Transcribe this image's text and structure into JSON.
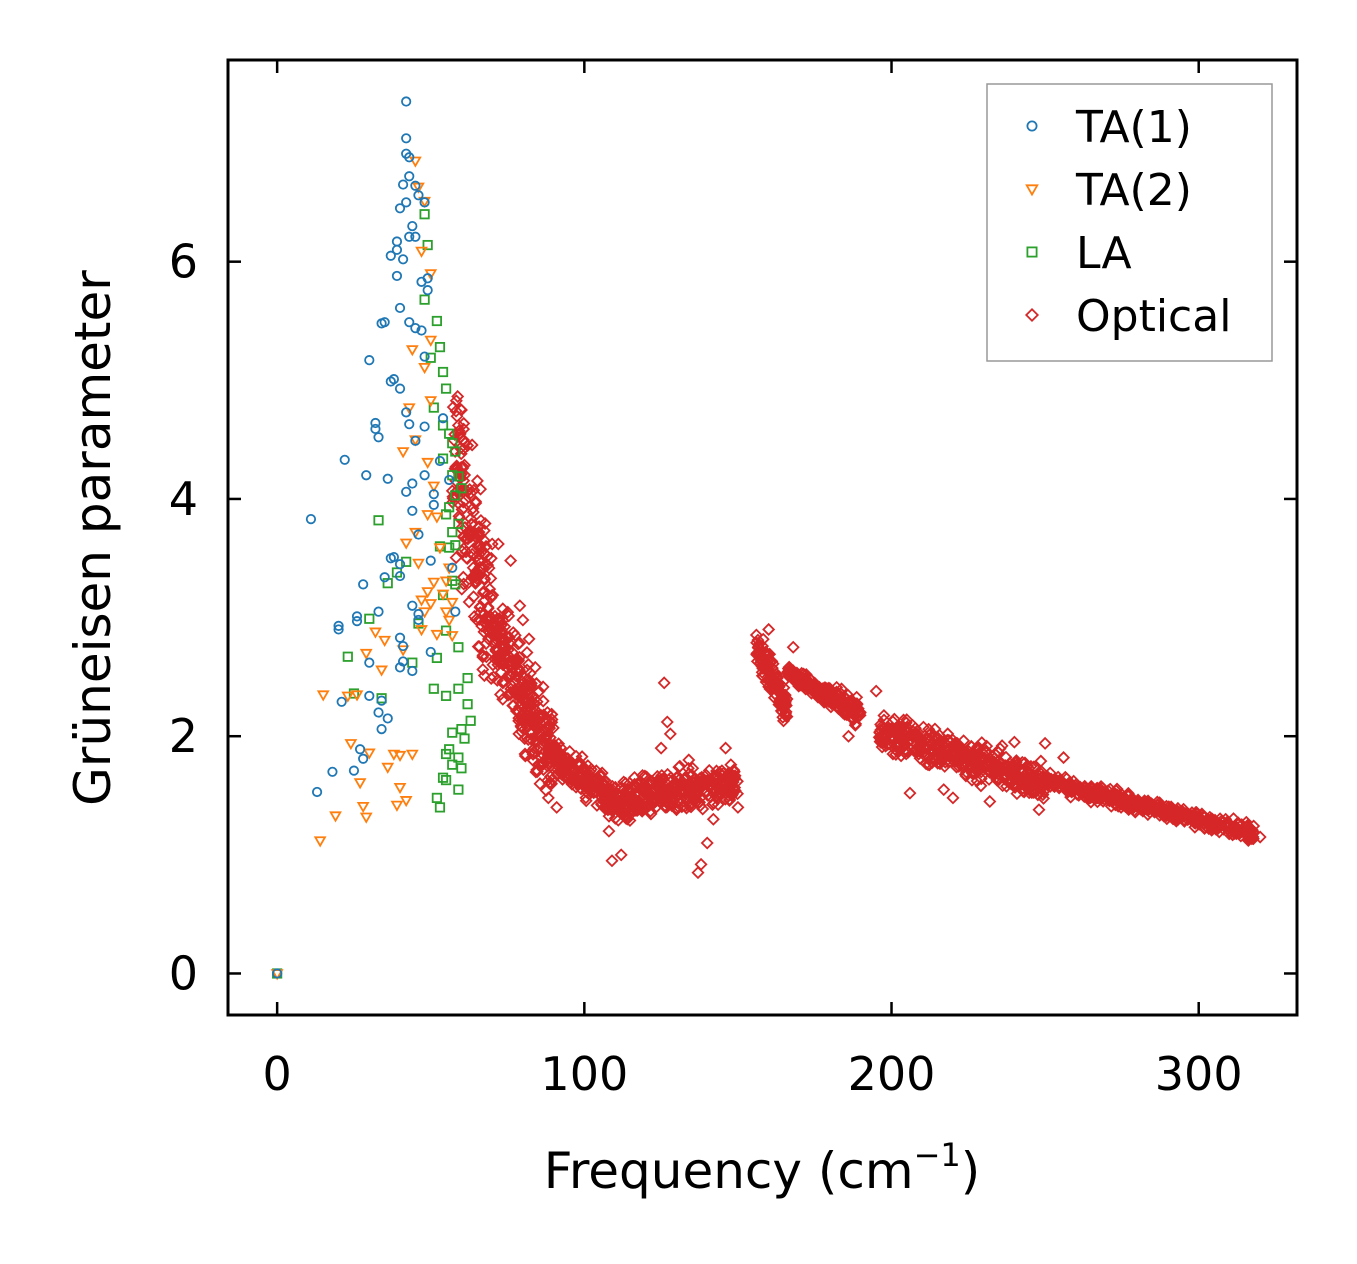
{
  "chart_data": {
    "type": "scatter",
    "title": "",
    "xlabel": "Frequency (cm",
    "xlabel_sup": "−1",
    "xlabel_close": ")",
    "ylabel": "Grüneisen parameter",
    "xlim": [
      -16,
      332
    ],
    "ylim": [
      -0.35,
      7.7
    ],
    "xticks": [
      0,
      100,
      200,
      300
    ],
    "yticks": [
      0,
      2,
      4,
      6
    ],
    "xtick_labels": [
      "0",
      "100",
      "200",
      "300"
    ],
    "ytick_labels": [
      "0",
      "2",
      "4",
      "6"
    ],
    "grid": false,
    "legend_position": "top-right",
    "series": [
      {
        "name": "TA(1)",
        "marker": "circle",
        "color": "#1f77b4",
        "points": [
          [
            0,
            0
          ],
          [
            11,
            3.83
          ],
          [
            13,
            1.53
          ],
          [
            18,
            1.7
          ],
          [
            20,
            2.9
          ],
          [
            20,
            2.93
          ],
          [
            21,
            2.29
          ],
          [
            22,
            4.33
          ],
          [
            25,
            1.71
          ],
          [
            26,
            2.97
          ],
          [
            26,
            3.01
          ],
          [
            27,
            1.89
          ],
          [
            28,
            1.81
          ],
          [
            28,
            3.28
          ],
          [
            29,
            4.2
          ],
          [
            30,
            2.34
          ],
          [
            30,
            2.62
          ],
          [
            30,
            5.17
          ],
          [
            32,
            4.64
          ],
          [
            32,
            4.59
          ],
          [
            33,
            2.2
          ],
          [
            33,
            3.05
          ],
          [
            33,
            4.52
          ],
          [
            34,
            2.3
          ],
          [
            34,
            2.06
          ],
          [
            34,
            5.48
          ],
          [
            35,
            5.49
          ],
          [
            35,
            3.34
          ],
          [
            36,
            4.17
          ],
          [
            36,
            2.15
          ],
          [
            37,
            3.5
          ],
          [
            37,
            4.99
          ],
          [
            37,
            6.05
          ],
          [
            38,
            5.01
          ],
          [
            38,
            3.51
          ],
          [
            39,
            5.88
          ],
          [
            39,
            6.1
          ],
          [
            39,
            6.17
          ],
          [
            40,
            3.45
          ],
          [
            40,
            3.35
          ],
          [
            40,
            4.93
          ],
          [
            40,
            5.61
          ],
          [
            40,
            6.45
          ],
          [
            40,
            2.83
          ],
          [
            40,
            2.58
          ],
          [
            41,
            2.76
          ],
          [
            41,
            2.63
          ],
          [
            41,
            6.65
          ],
          [
            41,
            6.02
          ],
          [
            42,
            4.06
          ],
          [
            42,
            4.73
          ],
          [
            42,
            6.5
          ],
          [
            42,
            6.91
          ],
          [
            42,
            7.04
          ],
          [
            42,
            7.35
          ],
          [
            43,
            5.49
          ],
          [
            43,
            4.63
          ],
          [
            43,
            6.21
          ],
          [
            43,
            6.72
          ],
          [
            43,
            6.88
          ],
          [
            44,
            3.9
          ],
          [
            44,
            4.13
          ],
          [
            44,
            3.1
          ],
          [
            44,
            2.55
          ],
          [
            44,
            6.3
          ],
          [
            45,
            6.64
          ],
          [
            45,
            6.21
          ],
          [
            45,
            5.44
          ],
          [
            45,
            4.49
          ],
          [
            46,
            3.7
          ],
          [
            46,
            3.03
          ],
          [
            46,
            2.98
          ],
          [
            46,
            6.56
          ],
          [
            47,
            5.83
          ],
          [
            47,
            5.42
          ],
          [
            48,
            5.2
          ],
          [
            48,
            4.61
          ],
          [
            48,
            4.2
          ],
          [
            48,
            6.5
          ],
          [
            49,
            5.76
          ],
          [
            49,
            5.86
          ],
          [
            50,
            3.48
          ],
          [
            50,
            2.71
          ],
          [
            51,
            4.04
          ],
          [
            51,
            3.95
          ],
          [
            53,
            4.32
          ],
          [
            54,
            4.68
          ],
          [
            56,
            4.16
          ],
          [
            57,
            3.42
          ],
          [
            58,
            3.05
          ]
        ]
      },
      {
        "name": "TA(2)",
        "marker": "triangle-down",
        "color": "#ff7f0e",
        "points": [
          [
            0,
            0
          ],
          [
            14,
            1.12
          ],
          [
            15,
            2.35
          ],
          [
            19,
            1.33
          ],
          [
            23,
            2.34
          ],
          [
            24,
            1.94
          ],
          [
            26,
            2.35
          ],
          [
            27,
            1.61
          ],
          [
            28,
            1.41
          ],
          [
            29,
            1.32
          ],
          [
            29,
            2.7
          ],
          [
            30,
            1.86
          ],
          [
            32,
            2.88
          ],
          [
            34,
            2.56
          ],
          [
            35,
            2.81
          ],
          [
            36,
            1.74
          ],
          [
            38,
            1.85
          ],
          [
            39,
            1.42
          ],
          [
            40,
            1.84
          ],
          [
            40,
            1.57
          ],
          [
            41,
            2.73
          ],
          [
            41,
            4.4
          ],
          [
            42,
            1.46
          ],
          [
            42,
            3.63
          ],
          [
            43,
            4.77
          ],
          [
            44,
            5.26
          ],
          [
            44,
            1.85
          ],
          [
            45,
            4.5
          ],
          [
            45,
            3.72
          ],
          [
            45,
            6.85
          ],
          [
            46,
            6.63
          ],
          [
            46,
            3.46
          ],
          [
            47,
            3.15
          ],
          [
            47,
            2.9
          ],
          [
            47,
            6.09
          ],
          [
            48,
            6.51
          ],
          [
            48,
            5.11
          ],
          [
            48,
            3.05
          ],
          [
            49,
            4.31
          ],
          [
            49,
            3.87
          ],
          [
            49,
            3.22
          ],
          [
            50,
            5.9
          ],
          [
            50,
            5.34
          ],
          [
            50,
            4.83
          ],
          [
            50,
            3.12
          ],
          [
            51,
            4.11
          ],
          [
            51,
            3.3
          ],
          [
            52,
            3.85
          ],
          [
            52,
            2.86
          ],
          [
            53,
            3.59
          ],
          [
            54,
            3.2
          ],
          [
            55,
            3.31
          ],
          [
            55,
            3.05
          ],
          [
            56,
            3.42
          ],
          [
            56,
            2.98
          ],
          [
            57,
            3.13
          ],
          [
            57,
            2.85
          ]
        ]
      },
      {
        "name": "LA",
        "marker": "square",
        "color": "#2ca02c",
        "points": [
          [
            0,
            0
          ],
          [
            23,
            2.67
          ],
          [
            25,
            2.36
          ],
          [
            30,
            2.99
          ],
          [
            33,
            3.82
          ],
          [
            34,
            2.32
          ],
          [
            36,
            3.29
          ],
          [
            39,
            3.38
          ],
          [
            42,
            3.47
          ],
          [
            44,
            2.62
          ],
          [
            46,
            2.95
          ],
          [
            48,
            6.4
          ],
          [
            48,
            5.68
          ],
          [
            49,
            6.14
          ],
          [
            50,
            5.19
          ],
          [
            51,
            4.77
          ],
          [
            51,
            2.4
          ],
          [
            52,
            5.5
          ],
          [
            52,
            2.66
          ],
          [
            52,
            1.48
          ],
          [
            53,
            5.28
          ],
          [
            53,
            3.6
          ],
          [
            53,
            1.4
          ],
          [
            54,
            5.07
          ],
          [
            54,
            4.62
          ],
          [
            54,
            4.34
          ],
          [
            54,
            3.19
          ],
          [
            54,
            1.65
          ],
          [
            55,
            4.93
          ],
          [
            55,
            3.87
          ],
          [
            55,
            2.89
          ],
          [
            55,
            2.34
          ],
          [
            55,
            1.85
          ],
          [
            55,
            1.63
          ],
          [
            56,
            4.55
          ],
          [
            56,
            3.93
          ],
          [
            56,
            3.59
          ],
          [
            56,
            1.89
          ],
          [
            57,
            4.47
          ],
          [
            57,
            4.2
          ],
          [
            57,
            3.72
          ],
          [
            57,
            3.31
          ],
          [
            57,
            2.03
          ],
          [
            57,
            1.76
          ],
          [
            58,
            4.4
          ],
          [
            58,
            4.03
          ],
          [
            58,
            3.61
          ],
          [
            58,
            3.28
          ],
          [
            59,
            4.19
          ],
          [
            59,
            3.79
          ],
          [
            59,
            2.75
          ],
          [
            59,
            2.4
          ],
          [
            59,
            1.82
          ],
          [
            59,
            1.55
          ],
          [
            60,
            4.09
          ],
          [
            60,
            2.06
          ],
          [
            60,
            1.73
          ],
          [
            61,
            1.98
          ],
          [
            62,
            2.49
          ],
          [
            62,
            2.27
          ],
          [
            63,
            2.13
          ]
        ]
      },
      {
        "name": "Optical",
        "marker": "diamond",
        "color": "#d62728",
        "bands": [
          {
            "x_start": 57,
            "x_end": 70,
            "y_center_start": 4.4,
            "y_center_end": 2.9,
            "half_width": 1.0,
            "n": 180
          },
          {
            "x_start": 70,
            "x_end": 90,
            "y_center_start": 2.9,
            "y_center_end": 1.8,
            "half_width": 0.55,
            "n": 300
          },
          {
            "x_start": 90,
            "x_end": 110,
            "y_center_start": 1.8,
            "y_center_end": 1.45,
            "half_width": 0.22,
            "n": 200
          },
          {
            "x_start": 110,
            "x_end": 150,
            "y_center_start": 1.45,
            "y_center_end": 1.6,
            "half_width": 0.25,
            "n": 350
          },
          {
            "x_start": 156,
            "x_end": 166,
            "y_center_start": 2.75,
            "y_center_end": 2.25,
            "half_width": 0.25,
            "n": 120
          },
          {
            "x_start": 166,
            "x_end": 178,
            "y_center_start": 2.55,
            "y_center_end": 2.35,
            "half_width": 0.1,
            "n": 110
          },
          {
            "x_start": 178,
            "x_end": 190,
            "y_center_start": 2.35,
            "y_center_end": 2.2,
            "half_width": 0.15,
            "n": 120
          },
          {
            "x_start": 196,
            "x_end": 250,
            "y_center_start": 2.05,
            "y_center_end": 1.6,
            "half_width": 0.22,
            "n": 450
          },
          {
            "x_start": 250,
            "x_end": 318,
            "y_center_start": 1.62,
            "y_center_end": 1.18,
            "half_width": 0.1,
            "n": 450
          }
        ],
        "points": [
          [
            59,
            4.62
          ],
          [
            60,
            4.75
          ],
          [
            62,
            4.45
          ],
          [
            63,
            4.05
          ],
          [
            68,
            3.6
          ],
          [
            70,
            3.62
          ],
          [
            72,
            3.62
          ],
          [
            76,
            3.48
          ],
          [
            79,
            3.1
          ],
          [
            80,
            2.98
          ],
          [
            82,
            2.82
          ],
          [
            84,
            2.58
          ],
          [
            88,
            2.2
          ],
          [
            91,
            1.4
          ],
          [
            94,
            1.72
          ],
          [
            100,
            1.7
          ],
          [
            108,
            1.2
          ],
          [
            109,
            0.95
          ],
          [
            112,
            1.0
          ],
          [
            118,
            1.45
          ],
          [
            122,
            1.62
          ],
          [
            125,
            1.9
          ],
          [
            126,
            2.45
          ],
          [
            127,
            2.12
          ],
          [
            128,
            2.02
          ],
          [
            130,
            1.38
          ],
          [
            134,
            1.8
          ],
          [
            136,
            1.55
          ],
          [
            137,
            0.85
          ],
          [
            138,
            0.92
          ],
          [
            140,
            1.1
          ],
          [
            142,
            1.3
          ],
          [
            146,
            1.9
          ],
          [
            150,
            1.4
          ],
          [
            160,
            2.9
          ],
          [
            168,
            2.75
          ],
          [
            186,
            2.0
          ],
          [
            195,
            2.38
          ],
          [
            206,
            1.52
          ],
          [
            217,
            1.55
          ],
          [
            220,
            1.48
          ],
          [
            232,
            1.45
          ],
          [
            236,
            1.92
          ],
          [
            240,
            1.95
          ],
          [
            248,
            1.38
          ],
          [
            250,
            1.94
          ],
          [
            256,
            1.82
          ],
          [
            320,
            1.15
          ]
        ]
      }
    ]
  }
}
